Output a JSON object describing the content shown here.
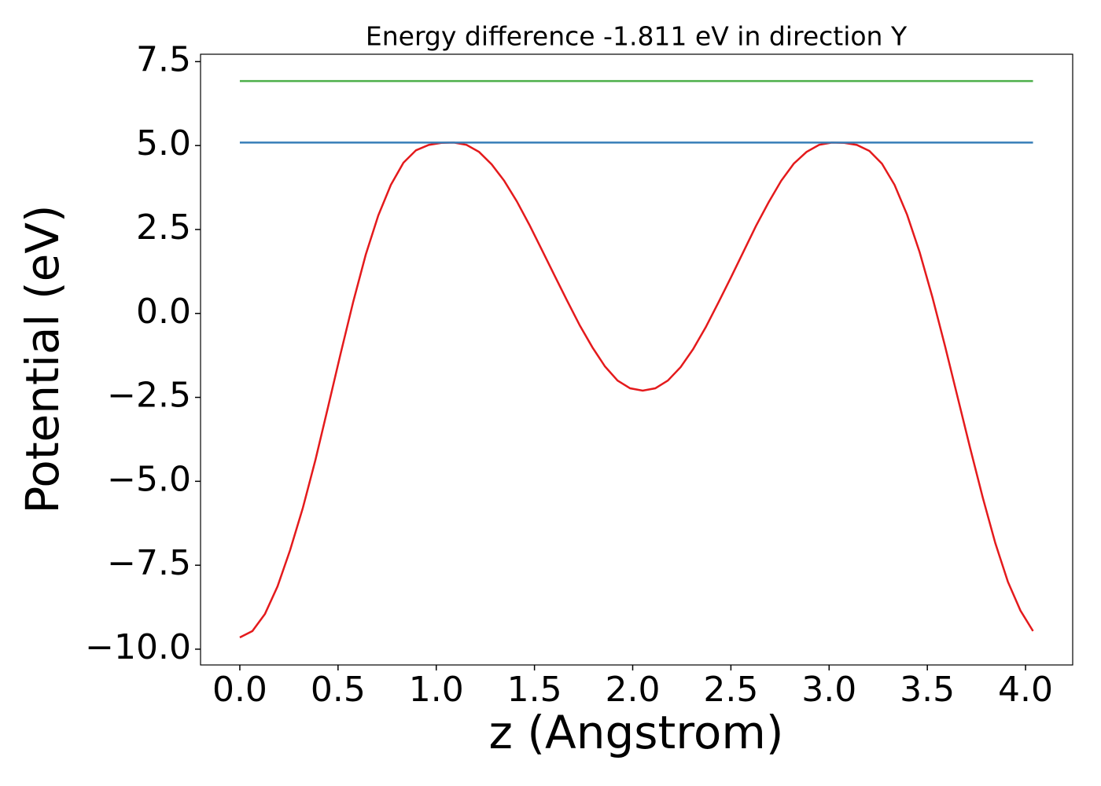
{
  "chart_data": {
    "type": "line",
    "title": "Energy difference -1.811 eV in direction Y",
    "x_label": "z (Angstrom)",
    "y_label": "Potential (eV)",
    "xlim": [
      -0.2,
      4.24
    ],
    "ylim": [
      -10.47,
      7.72
    ],
    "xticks": [
      {
        "value": 0,
        "label": "0.0"
      },
      {
        "value": 0.5,
        "label": "0.5"
      },
      {
        "value": 1,
        "label": "1.0"
      },
      {
        "value": 1.5,
        "label": "1.5"
      },
      {
        "value": 2,
        "label": "2.0"
      },
      {
        "value": 2.5,
        "label": "2.5"
      },
      {
        "value": 3,
        "label": "3.0"
      },
      {
        "value": 3.5,
        "label": "3.5"
      },
      {
        "value": 4,
        "label": "4.0"
      }
    ],
    "yticks": [
      {
        "value": -10,
        "label": "−10.0"
      },
      {
        "value": -7.5,
        "label": "−7.5"
      },
      {
        "value": -5,
        "label": "−5.0"
      },
      {
        "value": -2.5,
        "label": "−2.5"
      },
      {
        "value": 0,
        "label": "0.0"
      },
      {
        "value": 2.5,
        "label": "2.5"
      },
      {
        "value": 5,
        "label": "5.0"
      },
      {
        "value": 7.5,
        "label": "7.5"
      }
    ],
    "grid": false,
    "series": [
      {
        "color": "#e41a1c",
        "x": [
          0,
          0.064,
          0.128,
          0.192,
          0.256,
          0.321,
          0.385,
          0.449,
          0.513,
          0.577,
          0.641,
          0.705,
          0.769,
          0.833,
          0.897,
          0.962,
          1.026,
          1.09,
          1.154,
          1.218,
          1.282,
          1.346,
          1.41,
          1.474,
          1.538,
          1.603,
          1.667,
          1.731,
          1.795,
          1.859,
          1.923,
          1.987,
          2.051,
          2.115,
          2.179,
          2.244,
          2.308,
          2.372,
          2.436,
          2.5,
          2.564,
          2.628,
          2.692,
          2.756,
          2.82,
          2.885,
          2.949,
          3.013,
          3.077,
          3.141,
          3.205,
          3.269,
          3.333,
          3.397,
          3.461,
          3.526,
          3.59,
          3.654,
          3.718,
          3.782,
          3.846,
          3.91,
          3.974,
          4.038
        ],
        "values": [
          -9.65,
          -9.46,
          -8.95,
          -8.13,
          -7.05,
          -5.79,
          -4.36,
          -2.79,
          -1.2,
          0.34,
          1.75,
          2.92,
          3.83,
          4.49,
          4.86,
          5.02,
          5.08,
          5.09,
          5.02,
          4.81,
          4.44,
          3.95,
          3.34,
          2.64,
          1.89,
          1.12,
          0.37,
          -0.36,
          -1.01,
          -1.58,
          -2.0,
          -2.23,
          -2.3,
          -2.23,
          -2.0,
          -1.6,
          -1.06,
          -0.41,
          0.32,
          1.07,
          1.84,
          2.61,
          3.31,
          3.95,
          4.46,
          4.81,
          5.02,
          5.09,
          5.08,
          5.02,
          4.84,
          4.46,
          3.83,
          2.94,
          1.82,
          0.48,
          -0.97,
          -2.49,
          -4.01,
          -5.48,
          -6.84,
          -7.99,
          -8.85,
          -9.46
        ]
      },
      {
        "color": "#377eb8",
        "x": [
          0,
          4.038
        ],
        "values": [
          5.09,
          5.09
        ]
      },
      {
        "color": "#4daf4a",
        "x": [
          0,
          4.038
        ],
        "values": [
          6.92,
          6.92
        ]
      }
    ]
  }
}
